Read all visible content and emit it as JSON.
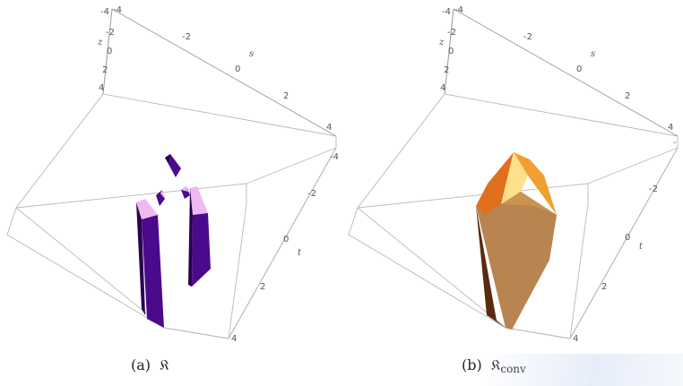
{
  "panels": [
    {
      "id": "a",
      "caption_label": "(a)",
      "caption_symbol": "ǩ̆",
      "caption_symbol_text": "𝔎",
      "caption_sub": "",
      "axes": {
        "z_name": "z",
        "s_name": "s",
        "t_name": "t",
        "z_ticks": [
          "-4",
          "-2",
          "0",
          "2",
          "4"
        ],
        "s_ticks": [
          "-4",
          "-2",
          "0",
          "2",
          "4"
        ],
        "t_ticks": [
          "-4",
          "-2",
          "0",
          "2",
          "4"
        ]
      },
      "colors": {
        "solid": "#4b0a8c",
        "top": "#f0b8f0",
        "side": "#2a0050"
      }
    },
    {
      "id": "b",
      "caption_label": "(b)",
      "caption_symbol_text": "𝔎",
      "caption_sub": "conv",
      "axes": {
        "z_name": "z",
        "s_name": "s",
        "t_name": "t",
        "z_ticks": [
          "-4",
          "-2",
          "0",
          "2",
          "4"
        ],
        "s_ticks": [
          "-4",
          "-2",
          "0",
          "2",
          "4"
        ],
        "t_ticks": [
          "-",
          "-2",
          "0",
          "2",
          "4"
        ]
      },
      "colors": {
        "solid": "#b88550",
        "top": "#ffe08a",
        "side": "#e0701e"
      }
    }
  ]
}
